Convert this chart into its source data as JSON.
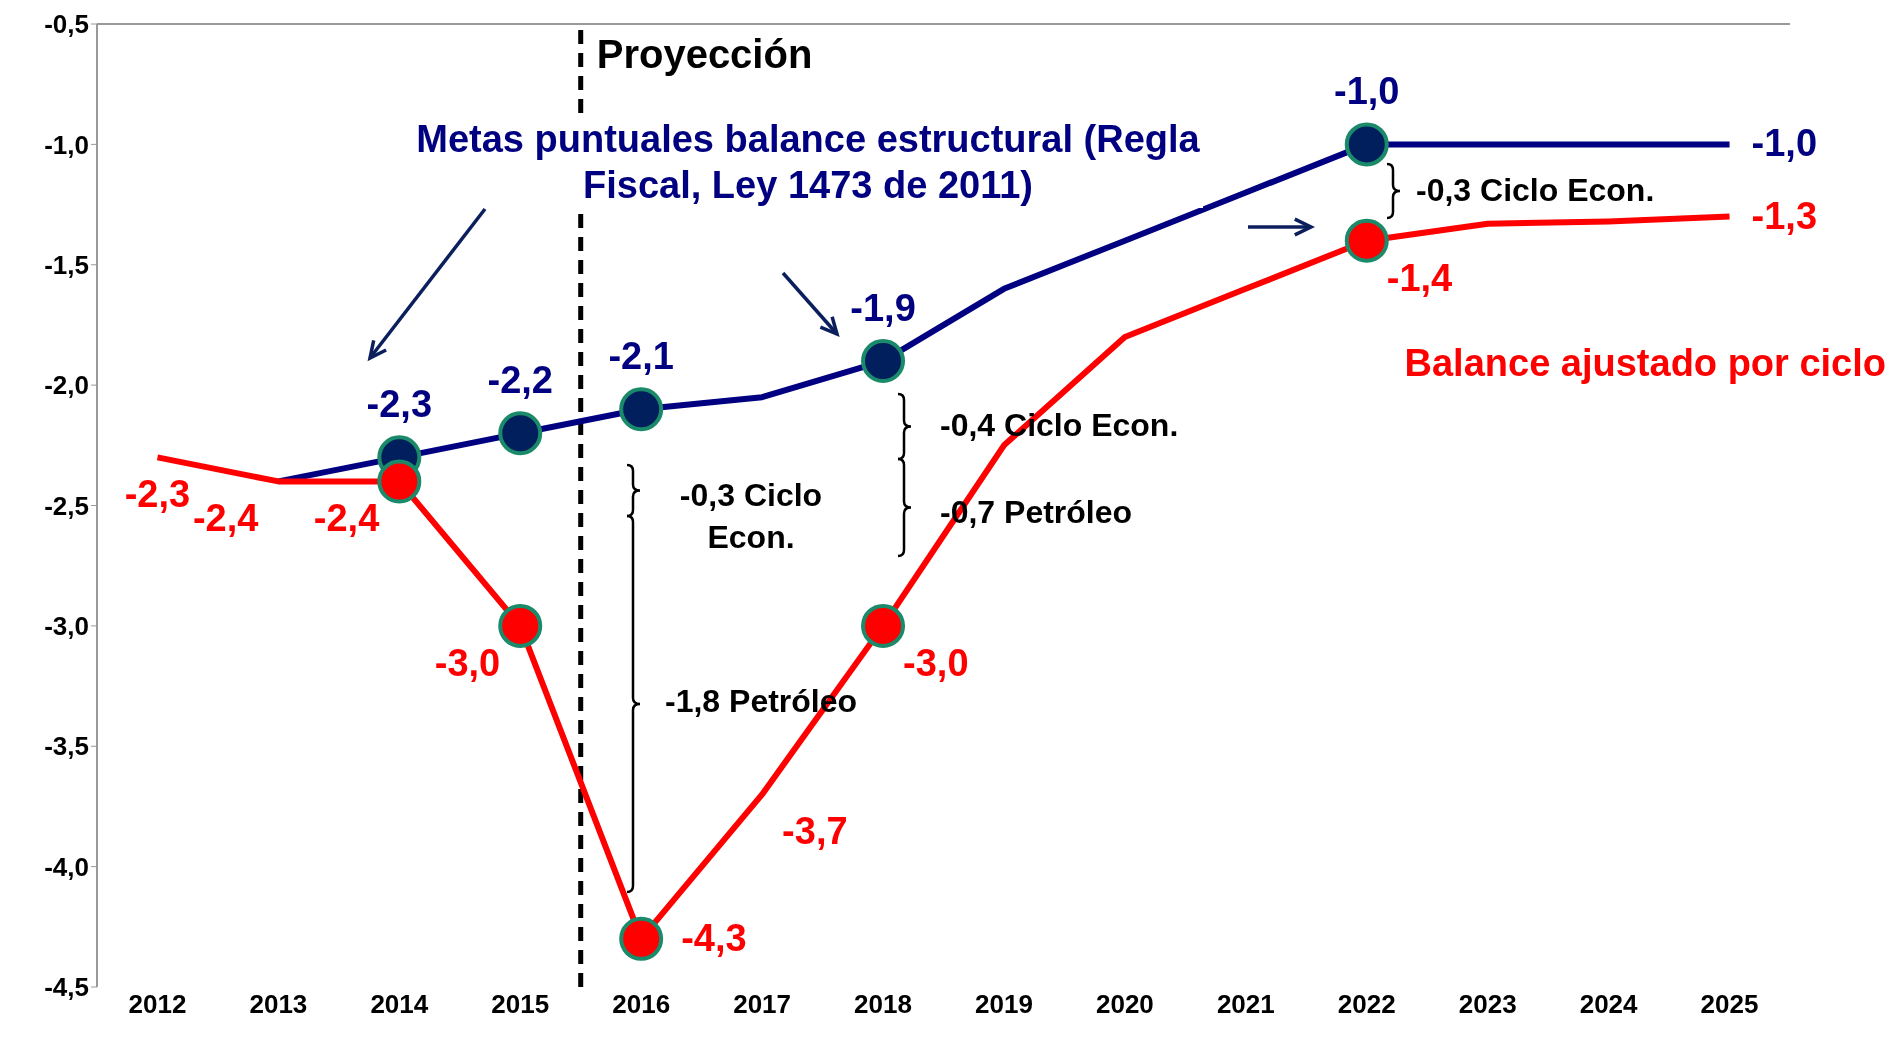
{
  "chart_data": {
    "type": "line",
    "legend": false,
    "grid": false,
    "marker": "none",
    "line_style": "solid",
    "xlim": [
      2011.5,
      2025.5
    ],
    "xticks": [
      2012,
      2013,
      2014,
      2015,
      2016,
      2017,
      2018,
      2019,
      2020,
      2021,
      2022,
      2023,
      2024,
      2025
    ],
    "ylim": [
      -4.5,
      -0.5
    ],
    "yticks": [
      {
        "value": -4.5,
        "label": "-4,5"
      },
      {
        "value": -4,
        "label": "-4,0"
      },
      {
        "value": -3.5,
        "label": "-3,5"
      },
      {
        "value": -3,
        "label": "-3,0"
      },
      {
        "value": -2.5,
        "label": "-2,5"
      },
      {
        "value": -2,
        "label": "-2,0"
      },
      {
        "value": -1.5,
        "label": "-1,5"
      },
      {
        "value": -1,
        "label": "-1,0"
      },
      {
        "value": -0.5,
        "label": "-0,5"
      }
    ],
    "ref_lines": [
      {
        "axis": "x",
        "value": 2015.5,
        "label": "Proyección",
        "color": "#000000",
        "line_style": "dashed"
      }
    ],
    "series": [
      {
        "name": "Metas puntuales balance estructural (Regla Fiscal, Ley 1473 de 2011)",
        "color": "#000080",
        "x": [
          2013,
          2014,
          2015,
          2016,
          2017,
          2018,
          2019,
          2020,
          2021,
          2022,
          2023,
          2024,
          2025
        ],
        "values": [
          -2.4,
          -2.3,
          -2.2,
          -2.1,
          -2.05,
          -1.9,
          -1.6,
          -1.4,
          -1.2,
          -1.0,
          -1.0,
          -1.0,
          -1.0
        ],
        "value_labels": [
          null,
          "-2,3",
          "-2,2",
          "-2,1",
          null,
          "-1,9",
          null,
          null,
          null,
          "-1,0",
          null,
          null,
          "-1,0"
        ]
      },
      {
        "name": "Balance ajustado por ciclo",
        "color": "#ff0000",
        "x": [
          2012,
          2013,
          2014,
          2015,
          2016,
          2017,
          2018,
          2019,
          2020,
          2021,
          2022,
          2023,
          2024,
          2025
        ],
        "values": [
          -2.3,
          -2.4,
          -2.4,
          -3.0,
          -4.3,
          -3.7,
          -3.0,
          -2.25,
          -1.8,
          -1.6,
          -1.4,
          -1.33,
          -1.32,
          -1.3
        ],
        "value_labels": [
          "-2,3",
          "-2,4",
          "-2,4",
          "-3,0",
          "-4,3",
          "-3,7",
          "-3,0",
          null,
          null,
          null,
          "-1,4",
          null,
          null,
          "-1,3"
        ]
      },
      {
        "type": "scatter",
        "marker": "circle",
        "color": "#001f5c",
        "x": [
          2014,
          2015,
          2016,
          2018,
          2022
        ],
        "values": [
          -2.3,
          -2.2,
          -2.1,
          -1.9,
          -1.0
        ]
      },
      {
        "type": "scatter",
        "marker": "circle",
        "color": "#ff0000",
        "x": [
          2014,
          2015,
          2016,
          2018,
          2022
        ],
        "values": [
          -2.4,
          -3.0,
          -4.3,
          -3.0,
          -1.4
        ]
      }
    ],
    "annotations": [
      "-0,3 Ciclo Econ.",
      "-0,4 Ciclo Econ.",
      "-0,7 Petróleo",
      "-0,3 Ciclo Econ.",
      "-1,8 Petróleo"
    ]
  }
}
